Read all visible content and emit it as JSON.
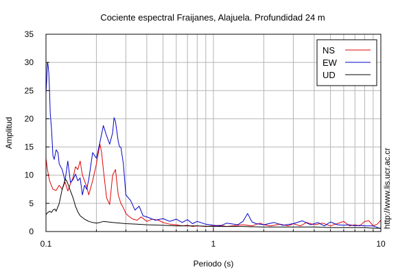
{
  "chart_data": {
    "type": "line",
    "title": "Cociente espectral Fraijanes, Alajuela. Profundidad 24 m",
    "xlabel": "Periodo (s)",
    "ylabel": "Amplitud",
    "side_label": "http://www.lis.ucr.ac.cr",
    "x_scale": "log",
    "xlim": [
      0.1,
      10
    ],
    "ylim": [
      0,
      35
    ],
    "x_ticks": [
      "0.1",
      "1",
      "10"
    ],
    "y_ticks": [
      "0",
      "5",
      "10",
      "15",
      "20",
      "25",
      "30",
      "35"
    ],
    "grid": true,
    "legend_position": "top-right",
    "series": [
      {
        "name": "NS",
        "color": "#e00000",
        "x": [
          0.1,
          0.102,
          0.105,
          0.11,
          0.115,
          0.12,
          0.125,
          0.13,
          0.135,
          0.14,
          0.145,
          0.15,
          0.155,
          0.16,
          0.165,
          0.17,
          0.175,
          0.18,
          0.19,
          0.2,
          0.21,
          0.215,
          0.22,
          0.23,
          0.24,
          0.25,
          0.26,
          0.27,
          0.28,
          0.29,
          0.3,
          0.31,
          0.33,
          0.35,
          0.37,
          0.4,
          0.43,
          0.47,
          0.5,
          0.55,
          0.6,
          0.65,
          0.7,
          0.75,
          0.8,
          0.9,
          1.0,
          1.1,
          1.2,
          1.3,
          1.5,
          1.7,
          1.9,
          2.0,
          2.2,
          2.5,
          2.8,
          3.0,
          3.3,
          3.6,
          4.0,
          4.5,
          5.0,
          5.5,
          6.0,
          6.5,
          7.0,
          7.5,
          8.0,
          8.5,
          9.0,
          9.5,
          10.0
        ],
        "y": [
          13,
          11,
          9,
          7.5,
          7.3,
          8.2,
          7.5,
          8.8,
          7.2,
          8.5,
          9.5,
          11.5,
          11,
          12.5,
          10,
          9,
          8,
          6.5,
          9,
          12,
          15.5,
          14,
          11,
          6,
          4.8,
          10,
          11,
          6.5,
          5,
          4.2,
          3.2,
          2.8,
          2.2,
          2.0,
          2.6,
          1.8,
          2.2,
          2.0,
          1.6,
          1.3,
          1.2,
          1.0,
          1.1,
          0.9,
          1.0,
          0.9,
          1.0,
          1.1,
          0.9,
          1.0,
          1.2,
          1.0,
          1.5,
          1.2,
          1.0,
          1.3,
          1.0,
          1.4,
          1.0,
          1.6,
          1.2,
          1.5,
          1.0,
          1.4,
          1.8,
          1.0,
          1.2,
          1.0,
          1.8,
          1.9,
          1.0,
          1.3,
          2.0
        ]
      },
      {
        "name": "EW",
        "color": "#0000c8",
        "x": [
          0.1,
          0.101,
          0.102,
          0.103,
          0.104,
          0.105,
          0.106,
          0.108,
          0.11,
          0.112,
          0.115,
          0.118,
          0.12,
          0.125,
          0.13,
          0.135,
          0.14,
          0.145,
          0.15,
          0.155,
          0.16,
          0.165,
          0.17,
          0.175,
          0.18,
          0.19,
          0.2,
          0.21,
          0.22,
          0.23,
          0.24,
          0.25,
          0.255,
          0.26,
          0.27,
          0.275,
          0.28,
          0.29,
          0.3,
          0.32,
          0.34,
          0.36,
          0.38,
          0.4,
          0.45,
          0.5,
          0.55,
          0.6,
          0.65,
          0.7,
          0.75,
          0.8,
          0.9,
          1.0,
          1.1,
          1.2,
          1.4,
          1.5,
          1.6,
          1.7,
          1.8,
          2.0,
          2.3,
          2.6,
          3.0,
          3.4,
          3.8,
          4.2,
          4.6,
          5.0,
          5.5,
          6.0,
          6.5,
          7.0,
          7.5,
          8.0,
          9.0,
          10.0
        ],
        "y": [
          24.5,
          27,
          30,
          29.5,
          28,
          25,
          21,
          18,
          13.5,
          12.8,
          14.5,
          14,
          12,
          11,
          9,
          12.5,
          8.7,
          9.2,
          10.2,
          9,
          9.5,
          6.5,
          8.2,
          7.5,
          9.2,
          14,
          13,
          15.8,
          18.8,
          17,
          15.5,
          17.5,
          20.2,
          19.5,
          16,
          15,
          15,
          12,
          6.5,
          5.5,
          3.8,
          4.5,
          2.8,
          2.6,
          2.0,
          2.3,
          1.8,
          2.2,
          1.6,
          2.1,
          1.4,
          1.8,
          1.3,
          1.1,
          1.0,
          1.5,
          1.2,
          1.8,
          3.2,
          1.7,
          1.4,
          1.2,
          1.6,
          1.1,
          1.4,
          1.9,
          1.2,
          1.6,
          1.0,
          1.7,
          1.2,
          1.1,
          1.2,
          1.0,
          1.1,
          1.0,
          1.0,
          0.5
        ]
      },
      {
        "name": "UD",
        "color": "#000000",
        "x": [
          0.1,
          0.102,
          0.105,
          0.108,
          0.11,
          0.113,
          0.115,
          0.12,
          0.125,
          0.128,
          0.13,
          0.133,
          0.135,
          0.14,
          0.145,
          0.15,
          0.155,
          0.16,
          0.17,
          0.18,
          0.19,
          0.2,
          0.21,
          0.22,
          0.25,
          0.3,
          0.35,
          0.4,
          0.5,
          0.6,
          0.8,
          1.0,
          1.5,
          2.0,
          3.0,
          4.0,
          5.0,
          6.0,
          7.0,
          8.0,
          9.0,
          10.0
        ],
        "y": [
          3.0,
          3.3,
          3.6,
          3.4,
          3.8,
          4.0,
          3.6,
          5.0,
          7.5,
          8.5,
          9.3,
          9.0,
          8.5,
          7.2,
          6.0,
          4.5,
          3.5,
          2.8,
          2.2,
          1.8,
          1.6,
          1.5,
          1.6,
          1.8,
          1.6,
          1.4,
          1.3,
          1.2,
          1.1,
          1.0,
          1.0,
          0.9,
          0.9,
          0.8,
          0.8,
          0.8,
          0.7,
          0.7,
          0.7,
          0.7,
          0.6,
          0.6
        ]
      }
    ]
  }
}
